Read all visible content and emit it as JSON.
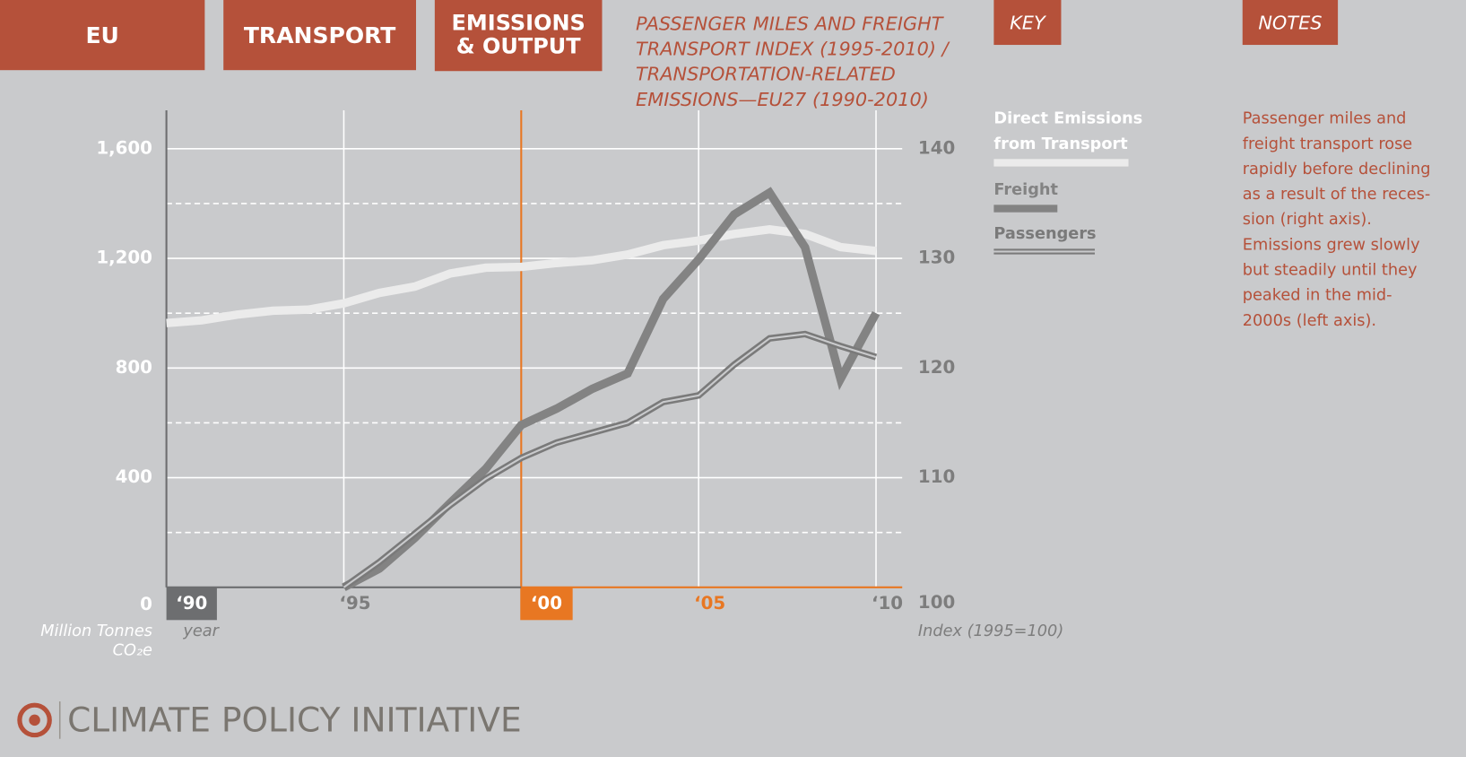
{
  "header": {
    "tabs": [
      "EU",
      "TRANSPORT"
    ],
    "tab3": [
      "EMISSIONS",
      "& OUTPUT"
    ],
    "title": [
      "PASSENGER MILES AND FREIGHT",
      "TRANSPORT INDEX (1995-2010) /",
      "TRANSPORTATION-RELATED",
      "EMISSIONS—EU27 (1990-2010)"
    ],
    "key": "KEY",
    "notes_label": "NOTES"
  },
  "notes": [
    "Passenger miles and",
    "freight transport rose",
    "rapidly before declining",
    "as a result of the reces-",
    "sion (right axis).",
    "Emissions grew slowly",
    "but steadily until they",
    "peaked in the mid-",
    "2000s (left axis)."
  ],
  "logo": "CLIMATE POLICY INITIATIVE",
  "chart_data": {
    "type": "line",
    "y_label": [
      "Million Tonnes",
      "CO₂e"
    ],
    "x_label": "year",
    "y2_label": "Index (1995=100)",
    "x": [
      1990,
      1991,
      1992,
      1993,
      1994,
      1995,
      1996,
      1997,
      1998,
      1999,
      2000,
      2001,
      2002,
      2003,
      2004,
      2005,
      2006,
      2007,
      2008,
      2009,
      2010
    ],
    "xlim": [
      1990,
      2010
    ],
    "xticks": [
      {
        "value": 1990,
        "label": "‘90"
      },
      {
        "value": 1995,
        "label": "‘95"
      },
      {
        "value": 2000,
        "label": "‘00"
      },
      {
        "value": 2005,
        "label": "‘05"
      },
      {
        "value": 2010,
        "label": "‘10"
      }
    ],
    "ylim": [
      0,
      1740
    ],
    "yticks": [
      0,
      400,
      800,
      {
        "value": 1200,
        "label": "1,200"
      },
      {
        "value": 1600,
        "label": "1,600"
      }
    ],
    "yminor": [
      200,
      600,
      1000,
      1400
    ],
    "y2lim": [
      100,
      143.5
    ],
    "y2ticks": [
      100,
      110,
      120,
      130,
      140
    ],
    "grid": true,
    "series": [
      {
        "name": "Direct Emissions from Transport",
        "color": "#ebebeb",
        "axis": "y",
        "values": [
          964,
          974,
          995,
          1009,
          1013,
          1036,
          1074,
          1097,
          1145,
          1166,
          1169,
          1183,
          1193,
          1214,
          1248,
          1265,
          1289,
          1306,
          1289,
          1241,
          1227
        ]
      },
      {
        "name": "Freight",
        "color": "#838383",
        "axis": "y2",
        "values": [
          null,
          null,
          null,
          null,
          null,
          100,
          101.7,
          104.5,
          107.7,
          110.8,
          114.8,
          116.3,
          118.1,
          119.5,
          126.3,
          129.9,
          134,
          136,
          131,
          119,
          125
        ]
      },
      {
        "name": "Passengers",
        "color": "#7a7a7a",
        "axis": "y2",
        "values": [
          null,
          null,
          null,
          null,
          null,
          100,
          102.3,
          104.9,
          107.5,
          109.9,
          111.8,
          113.2,
          114.1,
          115,
          116.9,
          117.5,
          120.3,
          122.7,
          123.1,
          122,
          121
        ]
      }
    ]
  }
}
